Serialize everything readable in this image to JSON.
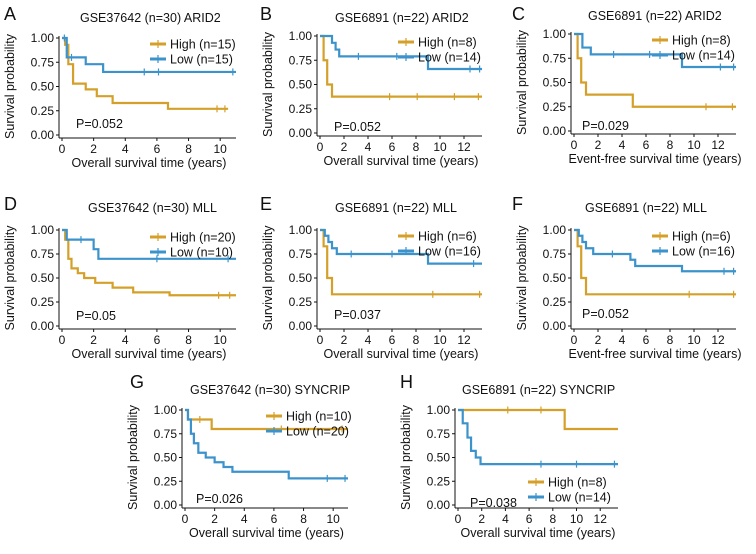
{
  "colors": {
    "high": "#D4A02A",
    "low": "#3C93CC",
    "axis": "#111111"
  },
  "chart_data": [
    {
      "type": "line",
      "panel_letter": "A",
      "title": "GSE37642 (n=30) ARID2",
      "xlabel": "Overall survival time (years)",
      "ylabel": "Survival probability",
      "xlim": [
        0,
        11
      ],
      "ylim": [
        0,
        1
      ],
      "xticks": [
        0,
        2,
        4,
        6,
        8,
        10
      ],
      "yticks": [
        "0.00",
        "0.25",
        "0.50",
        "0.75",
        "1.00"
      ],
      "p_value": "P=0.052",
      "legend_position": "top-right",
      "series": [
        {
          "name": "High (n=15)",
          "color_key": "high",
          "steps": [
            [
              0,
              1.0
            ],
            [
              0.2,
              0.93
            ],
            [
              0.4,
              0.73
            ],
            [
              0.7,
              0.53
            ],
            [
              1.5,
              0.47
            ],
            [
              2.2,
              0.4
            ],
            [
              3.2,
              0.33
            ],
            [
              6.7,
              0.27
            ],
            [
              10.5,
              0.27
            ]
          ],
          "censor": [
            [
              9.8,
              0.27
            ],
            [
              10.3,
              0.27
            ]
          ]
        },
        {
          "name": "Low (n=15)",
          "color_key": "low",
          "steps": [
            [
              0,
              1.0
            ],
            [
              0.3,
              0.8
            ],
            [
              1.5,
              0.73
            ],
            [
              2.6,
              0.65
            ],
            [
              11,
              0.65
            ]
          ],
          "censor": [
            [
              0.15,
              1.0
            ],
            [
              0.6,
              0.8
            ],
            [
              5.2,
              0.65
            ],
            [
              6.1,
              0.65
            ],
            [
              10.8,
              0.65
            ]
          ]
        }
      ]
    },
    {
      "type": "line",
      "panel_letter": "B",
      "title": "GSE6891 (n=22) ARID2",
      "xlabel": "Overall survival time (years)",
      "ylabel": "Survival probability",
      "xlim": [
        0,
        13.5
      ],
      "ylim": [
        0,
        1
      ],
      "xticks": [
        0,
        2,
        4,
        6,
        8,
        10,
        12
      ],
      "yticks": [
        "0.00",
        "0.25",
        "0.50",
        "0.75",
        "1.00"
      ],
      "p_value": "P=0.052",
      "legend_position": "top-right",
      "series": [
        {
          "name": "High (n=8)",
          "color_key": "high",
          "steps": [
            [
              0,
              1.0
            ],
            [
              0.3,
              0.75
            ],
            [
              0.6,
              0.5
            ],
            [
              1.0,
              0.375
            ],
            [
              13.5,
              0.375
            ]
          ],
          "censor": [
            [
              5.8,
              0.375
            ],
            [
              8.1,
              0.375
            ],
            [
              11.2,
              0.375
            ],
            [
              13.2,
              0.375
            ]
          ]
        },
        {
          "name": "Low (n=14)",
          "color_key": "low",
          "steps": [
            [
              0,
              1.0
            ],
            [
              1.0,
              0.93
            ],
            [
              1.3,
              0.86
            ],
            [
              1.6,
              0.79
            ],
            [
              9.0,
              0.66
            ],
            [
              13.5,
              0.66
            ]
          ],
          "censor": [
            [
              3.2,
              0.79
            ],
            [
              6.4,
              0.79
            ],
            [
              12.5,
              0.66
            ],
            [
              13.3,
              0.66
            ]
          ]
        }
      ]
    },
    {
      "type": "line",
      "panel_letter": "C",
      "title": "GSE6891 (n=22) ARID2",
      "xlabel": "Event-free survival time (years)",
      "ylabel": "Survival probability",
      "xlim": [
        0,
        13.5
      ],
      "ylim": [
        0,
        1
      ],
      "xticks": [
        0,
        2,
        4,
        6,
        8,
        10,
        12
      ],
      "yticks": [
        "0.00",
        "0.25",
        "0.50",
        "0.75",
        "1.00"
      ],
      "p_value": "P=0.029",
      "legend_position": "top-right",
      "series": [
        {
          "name": "High (n=8)",
          "color_key": "high",
          "steps": [
            [
              0,
              1.0
            ],
            [
              0.3,
              0.75
            ],
            [
              0.6,
              0.5
            ],
            [
              1.0,
              0.375
            ],
            [
              4.9,
              0.25
            ],
            [
              13.5,
              0.25
            ]
          ],
          "censor": [
            [
              11.0,
              0.25
            ],
            [
              13.2,
              0.25
            ]
          ]
        },
        {
          "name": "Low (n=14)",
          "color_key": "low",
          "steps": [
            [
              0,
              1.0
            ],
            [
              0.7,
              0.86
            ],
            [
              1.4,
              0.79
            ],
            [
              9.0,
              0.66
            ],
            [
              13.5,
              0.66
            ]
          ],
          "censor": [
            [
              3.3,
              0.79
            ],
            [
              6.3,
              0.79
            ],
            [
              12.2,
              0.66
            ],
            [
              13.3,
              0.66
            ]
          ]
        }
      ]
    },
    {
      "type": "line",
      "panel_letter": "D",
      "title": "GSE37642 (n=30) MLL",
      "xlabel": "Overall survival time (years)",
      "ylabel": "Survival probability",
      "xlim": [
        0,
        11
      ],
      "ylim": [
        0,
        1
      ],
      "xticks": [
        0,
        2,
        4,
        6,
        8,
        10
      ],
      "yticks": [
        "0.00",
        "0.25",
        "0.50",
        "0.75",
        "1.00"
      ],
      "p_value": "P=0.05",
      "legend_position": "top-right",
      "series": [
        {
          "name": "High (n=20)",
          "color_key": "high",
          "steps": [
            [
              0,
              1.0
            ],
            [
              0.2,
              0.9
            ],
            [
              0.4,
              0.7
            ],
            [
              0.6,
              0.6
            ],
            [
              1.0,
              0.55
            ],
            [
              1.4,
              0.5
            ],
            [
              2.1,
              0.45
            ],
            [
              3.2,
              0.4
            ],
            [
              4.5,
              0.35
            ],
            [
              6.8,
              0.32
            ],
            [
              11,
              0.32
            ]
          ],
          "censor": [
            [
              9.9,
              0.32
            ],
            [
              10.6,
              0.32
            ]
          ]
        },
        {
          "name": "Low (n=10)",
          "color_key": "low",
          "steps": [
            [
              0,
              1.0
            ],
            [
              0.3,
              0.9
            ],
            [
              2.0,
              0.8
            ],
            [
              2.3,
              0.7
            ],
            [
              11,
              0.7
            ]
          ],
          "censor": [
            [
              1.2,
              0.9
            ],
            [
              6.0,
              0.7
            ],
            [
              10.5,
              0.7
            ]
          ]
        }
      ]
    },
    {
      "type": "line",
      "panel_letter": "E",
      "title": "GSE6891 (n=22) MLL",
      "xlabel": "Overall survival time (years)",
      "ylabel": "Survival probability",
      "xlim": [
        0,
        13.5
      ],
      "ylim": [
        0,
        1
      ],
      "xticks": [
        0,
        2,
        4,
        6,
        8,
        10,
        12
      ],
      "yticks": [
        "0.00",
        "0.25",
        "0.50",
        "0.75",
        "1.00"
      ],
      "p_value": "P=0.037",
      "legend_position": "top-right",
      "series": [
        {
          "name": "High (n=6)",
          "color_key": "high",
          "steps": [
            [
              0,
              1.0
            ],
            [
              0.3,
              0.83
            ],
            [
              0.6,
              0.5
            ],
            [
              1.0,
              0.33
            ],
            [
              13.5,
              0.33
            ]
          ],
          "censor": [
            [
              9.4,
              0.33
            ],
            [
              13.3,
              0.33
            ]
          ]
        },
        {
          "name": "Low (n=16)",
          "color_key": "low",
          "steps": [
            [
              0,
              1.0
            ],
            [
              0.4,
              0.94
            ],
            [
              0.7,
              0.875
            ],
            [
              1.0,
              0.81
            ],
            [
              1.4,
              0.75
            ],
            [
              9.0,
              0.65
            ],
            [
              13.5,
              0.65
            ]
          ],
          "censor": [
            [
              2.6,
              0.75
            ],
            [
              6.0,
              0.75
            ],
            [
              12.8,
              0.65
            ]
          ]
        }
      ]
    },
    {
      "type": "line",
      "panel_letter": "F",
      "title": "GSE6891 (n=22) MLL",
      "xlabel": "Event-free survival time (years)",
      "ylabel": "Survival probability",
      "xlim": [
        0,
        13.5
      ],
      "ylim": [
        0,
        1
      ],
      "xticks": [
        0,
        2,
        4,
        6,
        8,
        10,
        12
      ],
      "yticks": [
        "0.00",
        "0.25",
        "0.50",
        "0.75",
        "1.00"
      ],
      "p_value": "P=0.052",
      "legend_position": "top-right",
      "series": [
        {
          "name": "High (n=6)",
          "color_key": "high",
          "steps": [
            [
              0,
              1.0
            ],
            [
              0.3,
              0.83
            ],
            [
              0.6,
              0.5
            ],
            [
              1.0,
              0.33
            ],
            [
              13.5,
              0.33
            ]
          ],
          "censor": [
            [
              9.6,
              0.33
            ],
            [
              13.3,
              0.33
            ]
          ]
        },
        {
          "name": "Low (n=16)",
          "color_key": "low",
          "steps": [
            [
              0,
              1.0
            ],
            [
              0.4,
              0.94
            ],
            [
              0.7,
              0.875
            ],
            [
              1.0,
              0.81
            ],
            [
              1.6,
              0.75
            ],
            [
              4.7,
              0.69
            ],
            [
              5.1,
              0.625
            ],
            [
              9.0,
              0.57
            ],
            [
              13.5,
              0.57
            ]
          ],
          "censor": [
            [
              3.2,
              0.75
            ],
            [
              12.5,
              0.57
            ],
            [
              13.3,
              0.57
            ]
          ]
        }
      ]
    },
    {
      "type": "line",
      "panel_letter": "G",
      "title": "GSE37642 (n=30) SYNCRIP",
      "xlabel": "Overall survival time (years)",
      "ylabel": "Survival probability",
      "xlim": [
        0,
        11
      ],
      "ylim": [
        0,
        1
      ],
      "xticks": [
        0,
        2,
        4,
        6,
        8,
        10
      ],
      "yticks": [
        "0.00",
        "0.25",
        "0.50",
        "0.75",
        "1.00"
      ],
      "p_value": "P=0.026",
      "legend_position": "top-right",
      "series": [
        {
          "name": "High (n=10)",
          "color_key": "high",
          "steps": [
            [
              0,
              1.0
            ],
            [
              0.2,
              0.9
            ],
            [
              1.8,
              0.8
            ],
            [
              11,
              0.8
            ]
          ],
          "censor": [
            [
              1.0,
              0.9
            ],
            [
              6.5,
              0.8
            ],
            [
              10.6,
              0.8
            ]
          ]
        },
        {
          "name": "Low (n=20)",
          "color_key": "low",
          "steps": [
            [
              0,
              1.0
            ],
            [
              0.2,
              0.9
            ],
            [
              0.4,
              0.75
            ],
            [
              0.6,
              0.65
            ],
            [
              0.9,
              0.55
            ],
            [
              1.4,
              0.5
            ],
            [
              2.0,
              0.45
            ],
            [
              2.6,
              0.4
            ],
            [
              3.2,
              0.35
            ],
            [
              7.0,
              0.28
            ],
            [
              11,
              0.28
            ]
          ],
          "censor": [
            [
              9.6,
              0.28
            ],
            [
              10.8,
              0.28
            ]
          ]
        }
      ]
    },
    {
      "type": "line",
      "panel_letter": "H",
      "title": "GSE6891 (n=22) SYNCRIP",
      "xlabel": "Overall survival time (years)",
      "ylabel": "Survival probability",
      "xlim": [
        0,
        13.5
      ],
      "ylim": [
        0,
        1
      ],
      "xticks": [
        0,
        2,
        4,
        6,
        8,
        10,
        12
      ],
      "yticks": [
        "0.00",
        "0.25",
        "0.50",
        "0.75",
        "1.00"
      ],
      "p_value": "P=0.038",
      "legend_position": "bottom-right",
      "series": [
        {
          "name": "High (n=8)",
          "color_key": "high",
          "steps": [
            [
              0,
              1.0
            ],
            [
              9.0,
              0.8
            ],
            [
              13.5,
              0.8
            ]
          ],
          "censor": [
            [
              4.2,
              1.0
            ],
            [
              7.0,
              1.0
            ]
          ]
        },
        {
          "name": "Low (n=14)",
          "color_key": "low",
          "steps": [
            [
              0,
              1.0
            ],
            [
              0.4,
              0.86
            ],
            [
              0.8,
              0.71
            ],
            [
              1.1,
              0.57
            ],
            [
              1.5,
              0.5
            ],
            [
              1.9,
              0.43
            ],
            [
              13.5,
              0.43
            ]
          ],
          "censor": [
            [
              7.0,
              0.43
            ],
            [
              10.0,
              0.43
            ],
            [
              13.2,
              0.43
            ]
          ]
        }
      ]
    }
  ]
}
